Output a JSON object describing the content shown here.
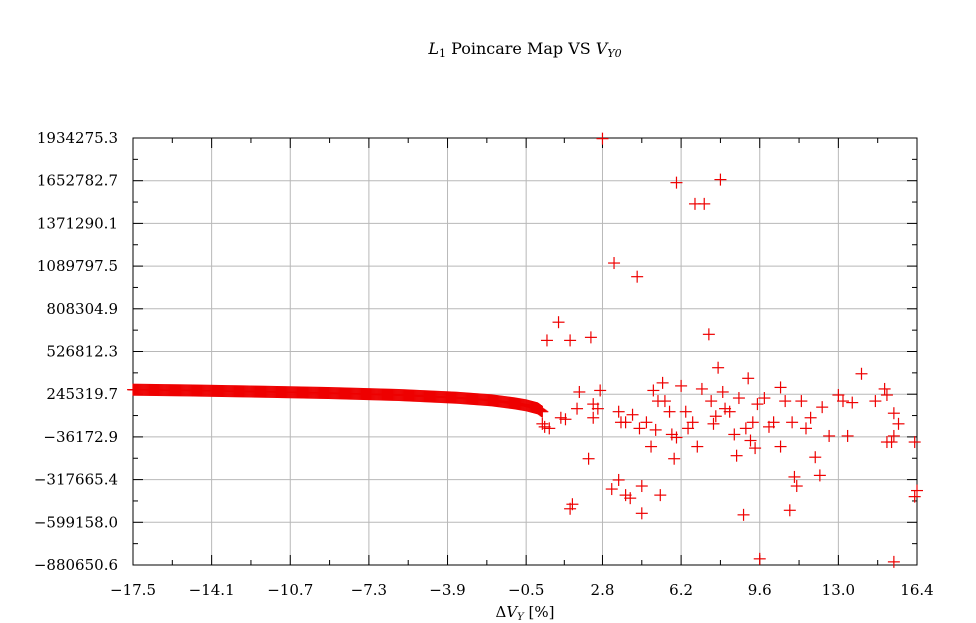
{
  "chart_data": {
    "type": "scatter",
    "title": "L1 Poincare Map VS VY0",
    "title_parts": {
      "l_symbol": "L",
      "l_subscript": "1",
      "middle": " Poincare Map VS ",
      "v_symbol": "V",
      "v_subscript": "Y0"
    },
    "xlabel": "ΔVY [%]",
    "xlabel_parts": {
      "delta": "Δ",
      "v_symbol": "V",
      "v_subscript": "Y",
      "unit": " [%]"
    },
    "ylabel": "",
    "xlim": [
      -17.5,
      16.4
    ],
    "ylim": [
      -880650.6,
      1934275.3
    ],
    "x_ticks": [
      {
        "value": -17.5,
        "label": "−17.5"
      },
      {
        "value": -14.1,
        "label": "−14.1"
      },
      {
        "value": -10.7,
        "label": "−10.7"
      },
      {
        "value": -7.3,
        "label": "−7.3"
      },
      {
        "value": -3.9,
        "label": "−3.9"
      },
      {
        "value": -0.5,
        "label": "−0.5"
      },
      {
        "value": 2.8,
        "label": "2.8"
      },
      {
        "value": 6.2,
        "label": "6.2"
      },
      {
        "value": 9.6,
        "label": "9.6"
      },
      {
        "value": 13.0,
        "label": "13.0"
      },
      {
        "value": 16.4,
        "label": "16.4"
      }
    ],
    "y_ticks": [
      {
        "value": 1934275.3,
        "label": "1934275.3"
      },
      {
        "value": 1652782.7,
        "label": "1652782.7"
      },
      {
        "value": 1371290.1,
        "label": "1371290.1"
      },
      {
        "value": 1089797.5,
        "label": "1089797.5"
      },
      {
        "value": 808304.9,
        "label": "808304.9"
      },
      {
        "value": 526812.3,
        "label": "526812.3"
      },
      {
        "value": 245319.7,
        "label": "245319.7"
      },
      {
        "value": -36172.9,
        "label": "−36172.9"
      },
      {
        "value": -317665.4,
        "label": "−317665.4"
      },
      {
        "value": -599158.0,
        "label": "−599158.0"
      },
      {
        "value": -880650.6,
        "label": "−880650.6"
      }
    ],
    "grid": true,
    "legend": "none",
    "series": [
      {
        "name": "poincare-points",
        "color": "#ee0000",
        "marker": "plus",
        "curve": {
          "x_start": -17.5,
          "x_end": 0.2,
          "count": 420,
          "x": [
            -17.5,
            -15.0,
            -12.0,
            -9.0,
            -6.0,
            -3.5,
            -2.0,
            -1.0,
            -0.5,
            0.0,
            0.2
          ],
          "y": [
            275000,
            270000,
            262000,
            253000,
            240000,
            222000,
            205000,
            185000,
            172000,
            152000,
            130000
          ]
        },
        "scatter": [
          {
            "x": 0.2,
            "y": 50000
          },
          {
            "x": 0.3,
            "y": 30000
          },
          {
            "x": 0.5,
            "y": 20000
          },
          {
            "x": 0.4,
            "y": 600000
          },
          {
            "x": 0.9,
            "y": 720000
          },
          {
            "x": 1.0,
            "y": 90000
          },
          {
            "x": 1.2,
            "y": 80000
          },
          {
            "x": 1.4,
            "y": 600000
          },
          {
            "x": 1.4,
            "y": -510000
          },
          {
            "x": 1.5,
            "y": -480000
          },
          {
            "x": 1.7,
            "y": 150000
          },
          {
            "x": 1.8,
            "y": 260000
          },
          {
            "x": 2.2,
            "y": -180000
          },
          {
            "x": 2.3,
            "y": 620000
          },
          {
            "x": 2.4,
            "y": 90000
          },
          {
            "x": 2.4,
            "y": 180000
          },
          {
            "x": 2.6,
            "y": 150000
          },
          {
            "x": 2.7,
            "y": 270000
          },
          {
            "x": 2.8,
            "y": 1930000
          },
          {
            "x": 3.3,
            "y": 1110000
          },
          {
            "x": 3.2,
            "y": -380000
          },
          {
            "x": 3.5,
            "y": -320000
          },
          {
            "x": 3.5,
            "y": 130000
          },
          {
            "x": 3.6,
            "y": 60000
          },
          {
            "x": 3.8,
            "y": 60000
          },
          {
            "x": 3.8,
            "y": -420000
          },
          {
            "x": 4.0,
            "y": -440000
          },
          {
            "x": 4.1,
            "y": 110000
          },
          {
            "x": 4.3,
            "y": 1020000
          },
          {
            "x": 4.4,
            "y": 20000
          },
          {
            "x": 4.5,
            "y": -360000
          },
          {
            "x": 4.5,
            "y": -540000
          },
          {
            "x": 4.7,
            "y": 60000
          },
          {
            "x": 4.9,
            "y": -100000
          },
          {
            "x": 5.0,
            "y": 270000
          },
          {
            "x": 5.1,
            "y": 10000
          },
          {
            "x": 5.2,
            "y": 200000
          },
          {
            "x": 5.3,
            "y": -420000
          },
          {
            "x": 5.4,
            "y": 320000
          },
          {
            "x": 5.5,
            "y": 200000
          },
          {
            "x": 5.7,
            "y": 130000
          },
          {
            "x": 5.8,
            "y": -20000
          },
          {
            "x": 5.9,
            "y": -180000
          },
          {
            "x": 6.0,
            "y": 1640000
          },
          {
            "x": 6.0,
            "y": -40000
          },
          {
            "x": 6.2,
            "y": 300000
          },
          {
            "x": 6.4,
            "y": 130000
          },
          {
            "x": 6.5,
            "y": 20000
          },
          {
            "x": 6.7,
            "y": 60000
          },
          {
            "x": 6.8,
            "y": 1500000
          },
          {
            "x": 6.9,
            "y": -100000
          },
          {
            "x": 7.1,
            "y": 280000
          },
          {
            "x": 7.2,
            "y": 1500000
          },
          {
            "x": 7.4,
            "y": 640000
          },
          {
            "x": 7.5,
            "y": 200000
          },
          {
            "x": 7.6,
            "y": 50000
          },
          {
            "x": 7.7,
            "y": 100000
          },
          {
            "x": 7.8,
            "y": 420000
          },
          {
            "x": 7.9,
            "y": 1660000
          },
          {
            "x": 8.0,
            "y": 260000
          },
          {
            "x": 8.1,
            "y": 150000
          },
          {
            "x": 8.3,
            "y": 130000
          },
          {
            "x": 8.5,
            "y": -20000
          },
          {
            "x": 8.6,
            "y": -160000
          },
          {
            "x": 8.7,
            "y": 220000
          },
          {
            "x": 8.9,
            "y": -550000
          },
          {
            "x": 9.0,
            "y": 20000
          },
          {
            "x": 9.1,
            "y": 350000
          },
          {
            "x": 9.2,
            "y": -60000
          },
          {
            "x": 9.3,
            "y": 60000
          },
          {
            "x": 9.4,
            "y": -110000
          },
          {
            "x": 9.5,
            "y": 180000
          },
          {
            "x": 9.6,
            "y": -840000
          },
          {
            "x": 9.8,
            "y": 220000
          },
          {
            "x": 10.0,
            "y": 30000
          },
          {
            "x": 10.2,
            "y": 60000
          },
          {
            "x": 10.5,
            "y": 290000
          },
          {
            "x": 10.5,
            "y": -100000
          },
          {
            "x": 10.7,
            "y": 200000
          },
          {
            "x": 10.9,
            "y": -520000
          },
          {
            "x": 11.0,
            "y": 60000
          },
          {
            "x": 11.1,
            "y": -300000
          },
          {
            "x": 11.2,
            "y": -360000
          },
          {
            "x": 11.4,
            "y": 200000
          },
          {
            "x": 11.6,
            "y": 20000
          },
          {
            "x": 11.8,
            "y": 90000
          },
          {
            "x": 12.0,
            "y": -170000
          },
          {
            "x": 12.2,
            "y": -290000
          },
          {
            "x": 12.3,
            "y": 160000
          },
          {
            "x": 12.6,
            "y": -30000
          },
          {
            "x": 13.0,
            "y": 240000
          },
          {
            "x": 13.2,
            "y": 200000
          },
          {
            "x": 13.4,
            "y": -30000
          },
          {
            "x": 13.6,
            "y": 190000
          },
          {
            "x": 14.0,
            "y": 380000
          },
          {
            "x": 14.6,
            "y": 200000
          },
          {
            "x": 15.0,
            "y": 280000
          },
          {
            "x": 15.1,
            "y": 240000
          },
          {
            "x": 15.1,
            "y": -70000
          },
          {
            "x": 15.3,
            "y": -70000
          },
          {
            "x": 15.4,
            "y": -30000
          },
          {
            "x": 15.4,
            "y": 120000
          },
          {
            "x": 15.4,
            "y": -860000
          },
          {
            "x": 15.6,
            "y": 50000
          },
          {
            "x": 16.3,
            "y": -70000
          },
          {
            "x": 16.3,
            "y": -430000
          },
          {
            "x": 16.4,
            "y": -390000
          }
        ]
      }
    ]
  }
}
